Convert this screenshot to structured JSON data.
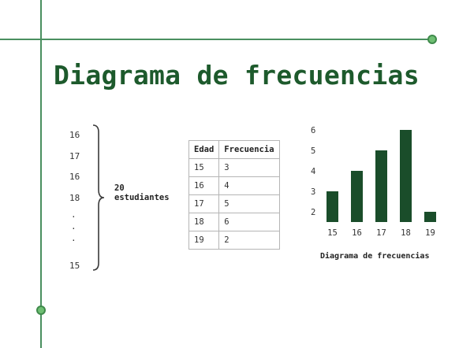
{
  "slide": {
    "title": "Diagrama de frecuencias"
  },
  "colors": {
    "accent": "#1d5a2c",
    "line": "#4a8f5f",
    "dot": "#6fbf73",
    "bar": "#1a4d2a"
  },
  "data_list": {
    "items": [
      "16",
      "17",
      "16",
      "18",
      ".",
      ".",
      ".",
      "15"
    ],
    "label_line1": "20",
    "label_line2": "estudiantes"
  },
  "table": {
    "headers": [
      "Edad",
      "Frecuencia"
    ],
    "rows": [
      [
        "15",
        "3"
      ],
      [
        "16",
        "4"
      ],
      [
        "17",
        "5"
      ],
      [
        "18",
        "6"
      ],
      [
        "19",
        "2"
      ]
    ]
  },
  "chart_data": {
    "type": "bar",
    "title": "Diagrama de frecuencias",
    "categories": [
      "15",
      "16",
      "17",
      "18",
      "19"
    ],
    "values": [
      3,
      4,
      5,
      6,
      2
    ],
    "yticks": [
      "2",
      "3",
      "4",
      "5",
      "6"
    ],
    "xlabel": "",
    "ylabel": "",
    "grid": false
  }
}
